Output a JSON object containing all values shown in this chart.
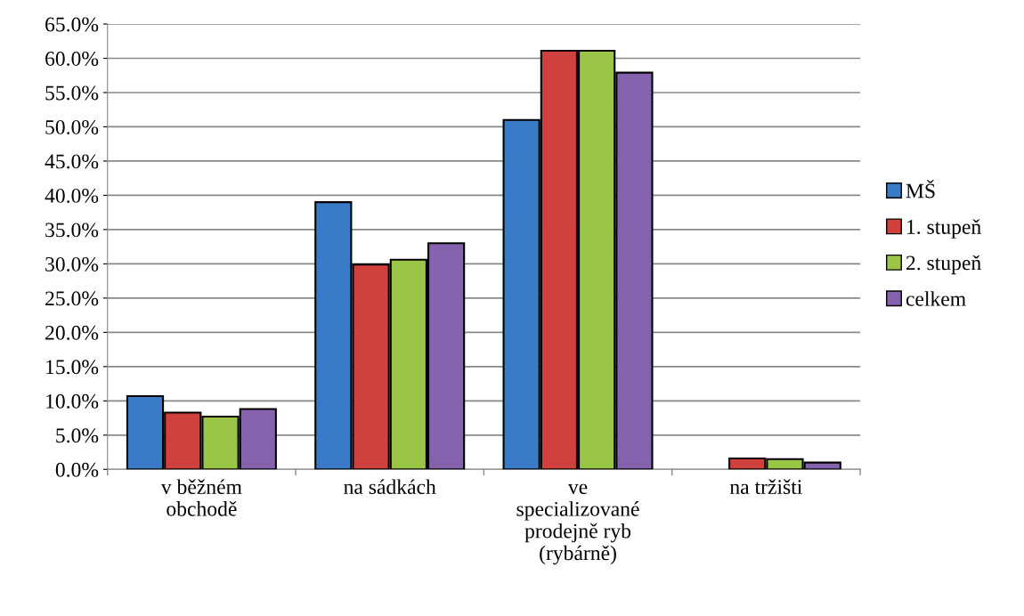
{
  "chart_data": {
    "type": "bar",
    "categories": [
      "v běžném\nobchodě",
      "na sádkách",
      "ve\nspecializované\nprodejně ryb\n(rybárně)",
      "na tržišti"
    ],
    "series": [
      {
        "name": "MŠ",
        "color": "#3a7bc8",
        "values": [
          10.7,
          39.0,
          51.0,
          null
        ]
      },
      {
        "name": "1. stupeň",
        "color": "#d0413d",
        "values": [
          8.3,
          29.9,
          61.1,
          1.6
        ]
      },
      {
        "name": "2. stupeň",
        "color": "#9bc547",
        "values": [
          7.7,
          30.6,
          61.1,
          1.5
        ]
      },
      {
        "name": "celkem",
        "color": "#8462ad",
        "values": [
          8.8,
          33.0,
          57.9,
          1.0
        ]
      }
    ],
    "ylim": [
      0,
      65
    ],
    "yticks": [
      {
        "value": 0,
        "label": "0.0%"
      },
      {
        "value": 5,
        "label": "5.0%"
      },
      {
        "value": 10,
        "label": "10.0%"
      },
      {
        "value": 15,
        "label": "15.0%"
      },
      {
        "value": 20,
        "label": "20.0%"
      },
      {
        "value": 25,
        "label": "25.0%"
      },
      {
        "value": 30,
        "label": "30.0%"
      },
      {
        "value": 35,
        "label": "35.0%"
      },
      {
        "value": 40,
        "label": "40.0%"
      },
      {
        "value": 45,
        "label": "45.0%"
      },
      {
        "value": 50,
        "label": "50.0%"
      },
      {
        "value": 55,
        "label": "55.0%"
      },
      {
        "value": 60,
        "label": "60.0%"
      },
      {
        "value": 65,
        "label": "65.0%"
      }
    ],
    "grid": "y",
    "legend": "right"
  }
}
